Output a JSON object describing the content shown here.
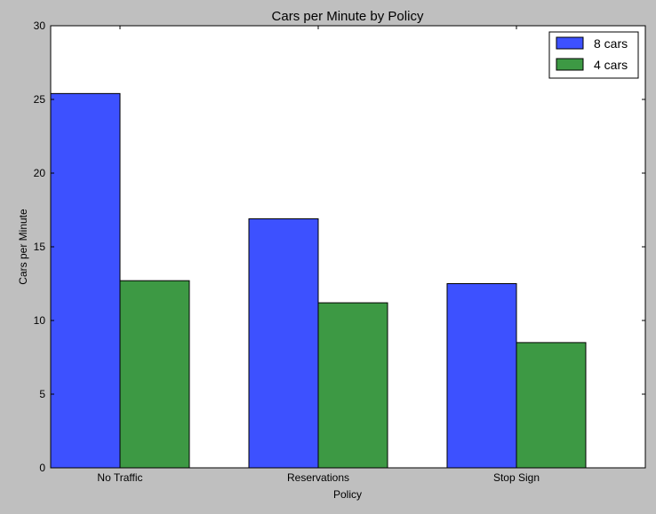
{
  "chart_data": {
    "type": "bar",
    "title": "Cars per Minute by Policy",
    "xlabel": "Policy",
    "ylabel": "Cars per Minute",
    "categories": [
      "No Traffic",
      "Reservations",
      "Stop Sign"
    ],
    "series": [
      {
        "name": "8 cars",
        "values": [
          25.4,
          16.9,
          12.5
        ],
        "color": "#3d51ff"
      },
      {
        "name": "4 cars",
        "values": [
          12.7,
          11.2,
          8.5
        ],
        "color": "#3d9944"
      }
    ],
    "ylim": [
      0,
      30
    ],
    "yticks": [
      "0",
      "5",
      "10",
      "15",
      "20",
      "25",
      "30"
    ],
    "grid": false,
    "legend_position": "top-right",
    "colors": {
      "background": "#bfbfbf",
      "plot_area": "#ffffff",
      "edge": "#000000"
    }
  }
}
